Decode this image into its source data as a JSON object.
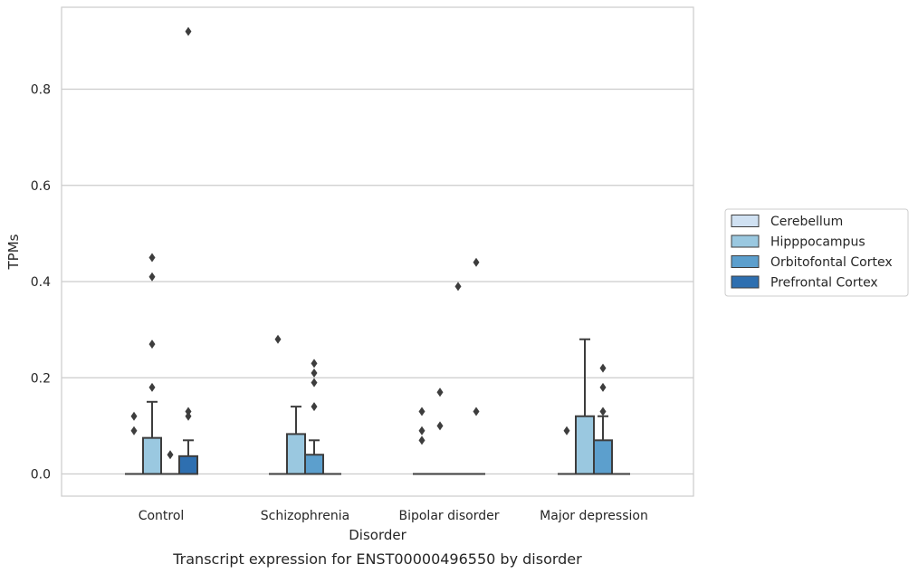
{
  "chart_data": {
    "type": "box",
    "xlabel": "Disorder",
    "ylabel": "TPMs",
    "caption": "Transcript expression for ENST00000496550 by disorder",
    "ylim": [
      -0.045,
      0.97
    ],
    "yticks": [
      0.0,
      0.2,
      0.4,
      0.6,
      0.8
    ],
    "ytick_labels": [
      "0.0",
      "0.2",
      "0.4",
      "0.6",
      "0.8"
    ],
    "grid": "horizontal",
    "legend_position": "right",
    "categories": [
      "Control",
      "Schizophrenia",
      "Bipolar disorder",
      "Major depression"
    ],
    "series": [
      {
        "name": "Cerebellum",
        "color": "#d0e1f2",
        "boxes": [
          {
            "q1": 0,
            "median": 0,
            "q3": 0,
            "whisker_low": 0,
            "whisker_high": 0,
            "outliers": [
              0.09,
              0.12
            ]
          },
          {
            "q1": 0,
            "median": 0,
            "q3": 0,
            "whisker_low": 0,
            "whisker_high": 0,
            "outliers": [
              0.28
            ]
          },
          {
            "q1": 0,
            "median": 0,
            "q3": 0,
            "whisker_low": 0,
            "whisker_high": 0,
            "outliers": [
              0.07,
              0.09,
              0.13
            ]
          },
          {
            "q1": 0,
            "median": 0,
            "q3": 0,
            "whisker_low": 0,
            "whisker_high": 0,
            "outliers": [
              0.09
            ]
          }
        ]
      },
      {
        "name": "Hipppocampus",
        "color": "#9ac8e0",
        "boxes": [
          {
            "q1": 0,
            "median": 0,
            "q3": 0.075,
            "whisker_low": 0,
            "whisker_high": 0.15,
            "outliers": [
              0.18,
              0.27,
              0.41,
              0.45
            ]
          },
          {
            "q1": 0,
            "median": 0,
            "q3": 0.083,
            "whisker_low": 0,
            "whisker_high": 0.14,
            "outliers": []
          },
          {
            "q1": 0,
            "median": 0,
            "q3": 0,
            "whisker_low": 0,
            "whisker_high": 0,
            "outliers": [
              0.1,
              0.17
            ]
          },
          {
            "q1": 0,
            "median": 0,
            "q3": 0.12,
            "whisker_low": 0,
            "whisker_high": 0.28,
            "outliers": []
          }
        ]
      },
      {
        "name": "Orbitofontal Cortex",
        "color": "#5c9fcd",
        "boxes": [
          {
            "q1": 0,
            "median": 0,
            "q3": 0,
            "whisker_low": 0,
            "whisker_high": 0,
            "outliers": [
              0.04
            ]
          },
          {
            "q1": 0,
            "median": 0,
            "q3": 0.04,
            "whisker_low": 0,
            "whisker_high": 0.07,
            "outliers": [
              0.14,
              0.19,
              0.21,
              0.23
            ]
          },
          {
            "q1": 0,
            "median": 0,
            "q3": 0,
            "whisker_low": 0,
            "whisker_high": 0,
            "outliers": [
              0.39
            ]
          },
          {
            "q1": 0,
            "median": 0,
            "q3": 0.07,
            "whisker_low": 0,
            "whisker_high": 0.12,
            "outliers": [
              0.13,
              0.18,
              0.22
            ]
          }
        ]
      },
      {
        "name": "Prefrontal Cortex",
        "color": "#2e6fb0",
        "boxes": [
          {
            "q1": 0,
            "median": 0,
            "q3": 0.037,
            "whisker_low": 0,
            "whisker_high": 0.07,
            "outliers": [
              0.12,
              0.13,
              0.92
            ]
          },
          {
            "q1": 0,
            "median": 0,
            "q3": 0,
            "whisker_low": 0,
            "whisker_high": 0,
            "outliers": []
          },
          {
            "q1": 0,
            "median": 0,
            "q3": 0,
            "whisker_low": 0,
            "whisker_high": 0,
            "outliers": [
              0.13,
              0.44
            ]
          },
          {
            "q1": 0,
            "median": 0,
            "q3": 0,
            "whisker_low": 0,
            "whisker_high": 0,
            "outliers": []
          }
        ]
      }
    ]
  }
}
